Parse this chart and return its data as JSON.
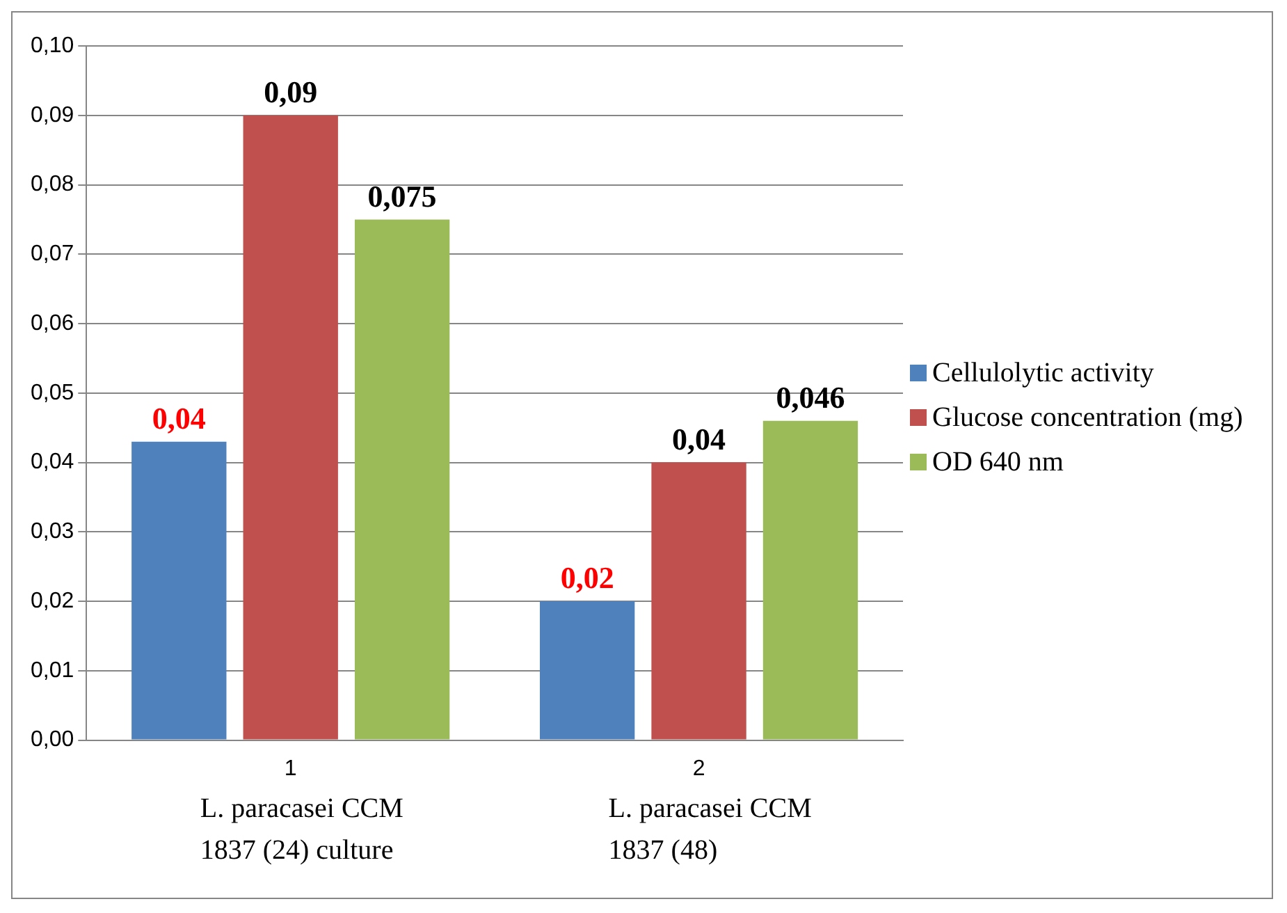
{
  "chart_data": {
    "type": "bar",
    "categories": [
      "1",
      "2"
    ],
    "series": [
      {
        "name": "Cellulolytic activity",
        "color": "#4f81bd",
        "values": [
          0.043,
          0.02
        ],
        "value_labels": [
          "0,04",
          "0,02"
        ]
      },
      {
        "name": "Glucose concentration (mg)",
        "color": "#c0504d",
        "values": [
          0.09,
          0.04
        ],
        "value_labels": [
          "0,09",
          "0,04"
        ]
      },
      {
        "name": "OD 640 nm",
        "color": "#9bbb59",
        "values": [
          0.075,
          0.046
        ],
        "value_labels": [
          "0,075",
          "0,046"
        ]
      }
    ],
    "ylim": [
      0,
      0.1
    ],
    "yticks": [
      {
        "value": 0,
        "label": "0,00"
      },
      {
        "value": 0.01,
        "label": "0,01"
      },
      {
        "value": 0.02,
        "label": "0,02"
      },
      {
        "value": 0.03,
        "label": "0,03"
      },
      {
        "value": 0.04,
        "label": "0,04"
      },
      {
        "value": 0.05,
        "label": "0,05"
      },
      {
        "value": 0.06,
        "label": "0,06"
      },
      {
        "value": 0.07,
        "label": "0,07"
      },
      {
        "value": 0.08,
        "label": "0,08"
      },
      {
        "value": 0.09,
        "label": "0,09"
      },
      {
        "value": 0.1,
        "label": "0,10"
      }
    ],
    "grid": "y",
    "legend": "right",
    "annotations": [
      "L. paracasei CCM 1837 (24) culture",
      "L. paracasei CCM 1837 (48)"
    ]
  }
}
